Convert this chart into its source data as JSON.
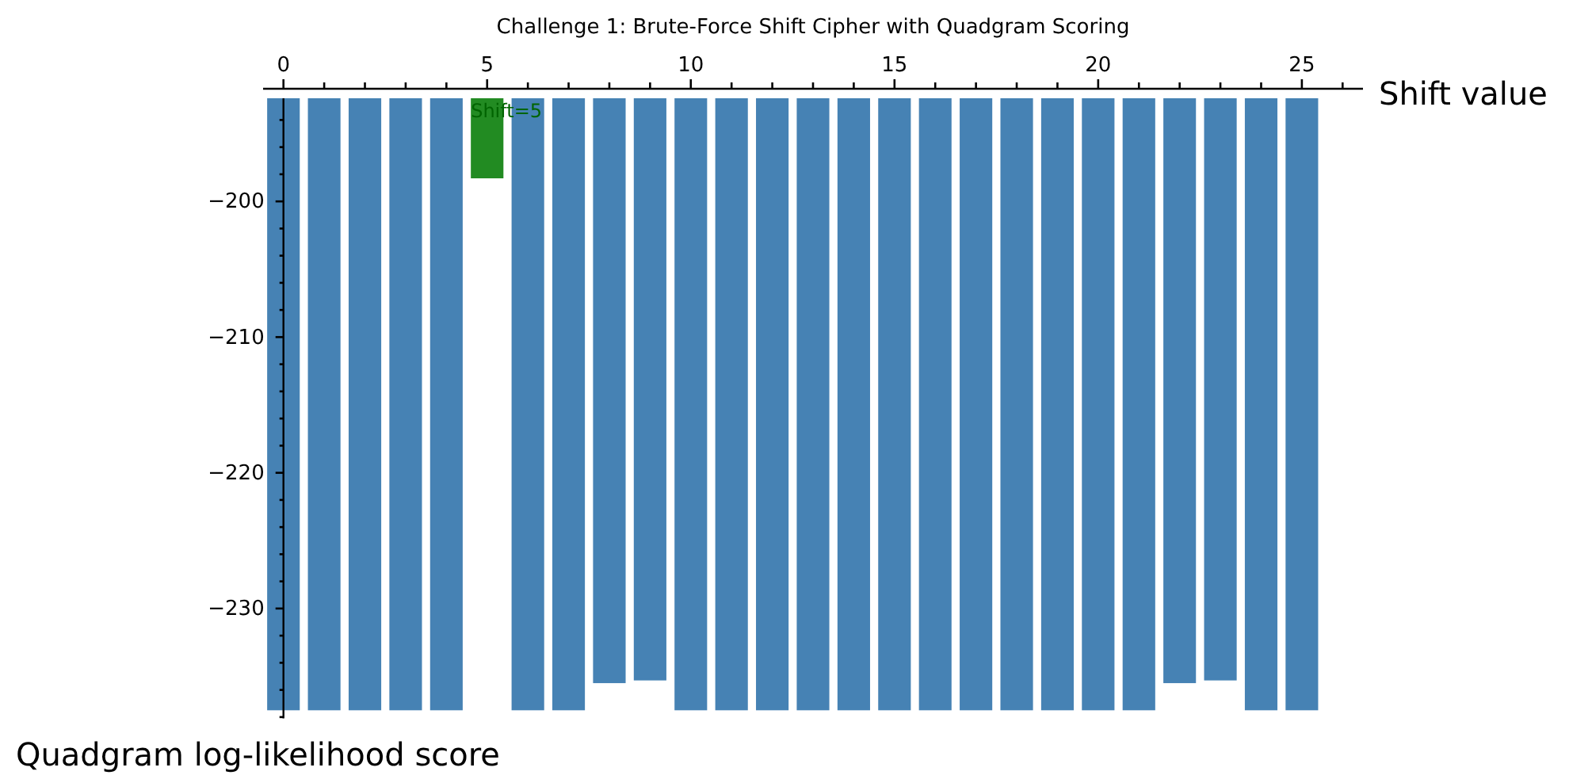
{
  "chart_data": {
    "type": "bar",
    "title": "Challenge 1: Brute-Force Shift Cipher with Quadgram Scoring",
    "xlabel": "Shift value",
    "ylabel": "Quadgram log-likelihood score",
    "x": [
      0,
      1,
      2,
      3,
      4,
      5,
      6,
      7,
      8,
      9,
      10,
      11,
      12,
      13,
      14,
      15,
      16,
      17,
      18,
      19,
      20,
      21,
      22,
      23,
      24,
      25
    ],
    "values": [
      -237.5,
      -237.5,
      -237.5,
      -237.5,
      -237.5,
      -198.3,
      -237.5,
      -237.5,
      -235.5,
      -235.3,
      -237.5,
      -237.5,
      -237.5,
      -237.5,
      -237.5,
      -237.5,
      -237.5,
      -237.5,
      -237.5,
      -237.5,
      -237.5,
      -237.5,
      -235.5,
      -235.3,
      -237.5,
      -237.5
    ],
    "colors": [
      "#4682b4",
      "#4682b4",
      "#4682b4",
      "#4682b4",
      "#4682b4",
      "#228b22",
      "#4682b4",
      "#4682b4",
      "#4682b4",
      "#4682b4",
      "#4682b4",
      "#4682b4",
      "#4682b4",
      "#4682b4",
      "#4682b4",
      "#4682b4",
      "#4682b4",
      "#4682b4",
      "#4682b4",
      "#4682b4",
      "#4682b4",
      "#4682b4",
      "#4682b4",
      "#4682b4",
      "#4682b4",
      "#4682b4"
    ],
    "xlim": [
      -0.5,
      26.5
    ],
    "ylim": [
      -238.1,
      -192.4
    ],
    "xticks": [
      0,
      {
        "value": 1,
        "label": null
      },
      {
        "value": 2,
        "label": null
      },
      {
        "value": 3,
        "label": null
      },
      {
        "value": 4,
        "label": null
      },
      5,
      {
        "value": 6,
        "label": null
      },
      {
        "value": 7,
        "label": null
      },
      {
        "value": 8,
        "label": null
      },
      {
        "value": 9,
        "label": null
      },
      10,
      {
        "value": 11,
        "label": null
      },
      {
        "value": 12,
        "label": null
      },
      {
        "value": 13,
        "label": null
      },
      {
        "value": 14,
        "label": null
      },
      15,
      {
        "value": 16,
        "label": null
      },
      {
        "value": 17,
        "label": null
      },
      {
        "value": 18,
        "label": null
      },
      {
        "value": 19,
        "label": null
      },
      20,
      {
        "value": 21,
        "label": null
      },
      {
        "value": 22,
        "label": null
      },
      {
        "value": 23,
        "label": null
      },
      {
        "value": 24,
        "label": null
      },
      25,
      {
        "value": 26,
        "label": null
      }
    ],
    "yticks": [
      {
        "value": -238,
        "label": null
      },
      {
        "value": -236,
        "label": null
      },
      {
        "value": -234,
        "label": null
      },
      {
        "value": -232,
        "label": null
      },
      -230,
      {
        "value": -228,
        "label": null
      },
      {
        "value": -226,
        "label": null
      },
      {
        "value": -224,
        "label": null
      },
      {
        "value": -222,
        "label": null
      },
      -220,
      {
        "value": -218,
        "label": null
      },
      {
        "value": -216,
        "label": null
      },
      {
        "value": -214,
        "label": null
      },
      {
        "value": -212,
        "label": null
      },
      -210,
      {
        "value": -208,
        "label": null
      },
      {
        "value": -206,
        "label": null
      },
      {
        "value": -204,
        "label": null
      },
      {
        "value": -202,
        "label": null
      },
      -200,
      {
        "value": -198,
        "label": null
      },
      {
        "value": -196,
        "label": null
      },
      {
        "value": -194,
        "label": null
      }
    ],
    "annotations": [
      {
        "text": "Shift=5",
        "x": 4.6,
        "y": -193.3
      }
    ]
  }
}
